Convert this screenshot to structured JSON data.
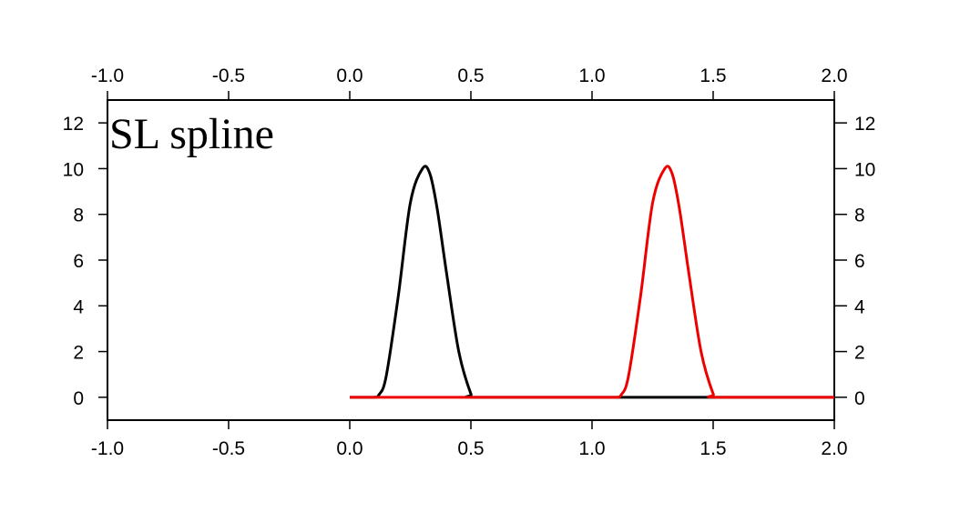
{
  "chart_data": {
    "type": "line",
    "title": "SL spline",
    "xlabel": "",
    "ylabel": "",
    "xlim": [
      -1.0,
      2.0
    ],
    "ylim": [
      -1.0,
      13.0
    ],
    "x_ticks": [
      -1.0,
      -0.5,
      0.0,
      0.5,
      1.0,
      1.5,
      2.0
    ],
    "x_tick_labels": [
      "-1.0",
      "-0.5",
      "0.0",
      "0.5",
      "1.0",
      "1.5",
      "2.0"
    ],
    "y_ticks": [
      0,
      2,
      4,
      6,
      8,
      10,
      12
    ],
    "y_tick_labels": [
      "0",
      "2",
      "4",
      "6",
      "8",
      "10",
      "12"
    ],
    "grid": false,
    "frame": "box with ticks and labels on all four sides",
    "series": [
      {
        "color": "#000000",
        "x": [
          0.0,
          0.1,
          0.12,
          0.15,
          0.2,
          0.25,
          0.3,
          0.33,
          0.36,
          0.4,
          0.45,
          0.5,
          0.52,
          1.0,
          1.5,
          2.0
        ],
        "y": [
          0,
          0,
          0.1,
          0.9,
          4.4,
          8.5,
          10.0,
          9.8,
          8.3,
          5.4,
          2.0,
          0.15,
          0,
          0,
          0,
          0
        ]
      },
      {
        "color": "#ee0000",
        "x": [
          0.0,
          0.5,
          1.0,
          1.1,
          1.12,
          1.15,
          1.2,
          1.25,
          1.3,
          1.33,
          1.36,
          1.4,
          1.45,
          1.5,
          1.52,
          2.0
        ],
        "y": [
          0,
          0,
          0,
          0,
          0.1,
          0.9,
          4.4,
          8.5,
          10.0,
          9.8,
          8.3,
          5.4,
          2.0,
          0.15,
          0,
          0
        ]
      }
    ]
  }
}
